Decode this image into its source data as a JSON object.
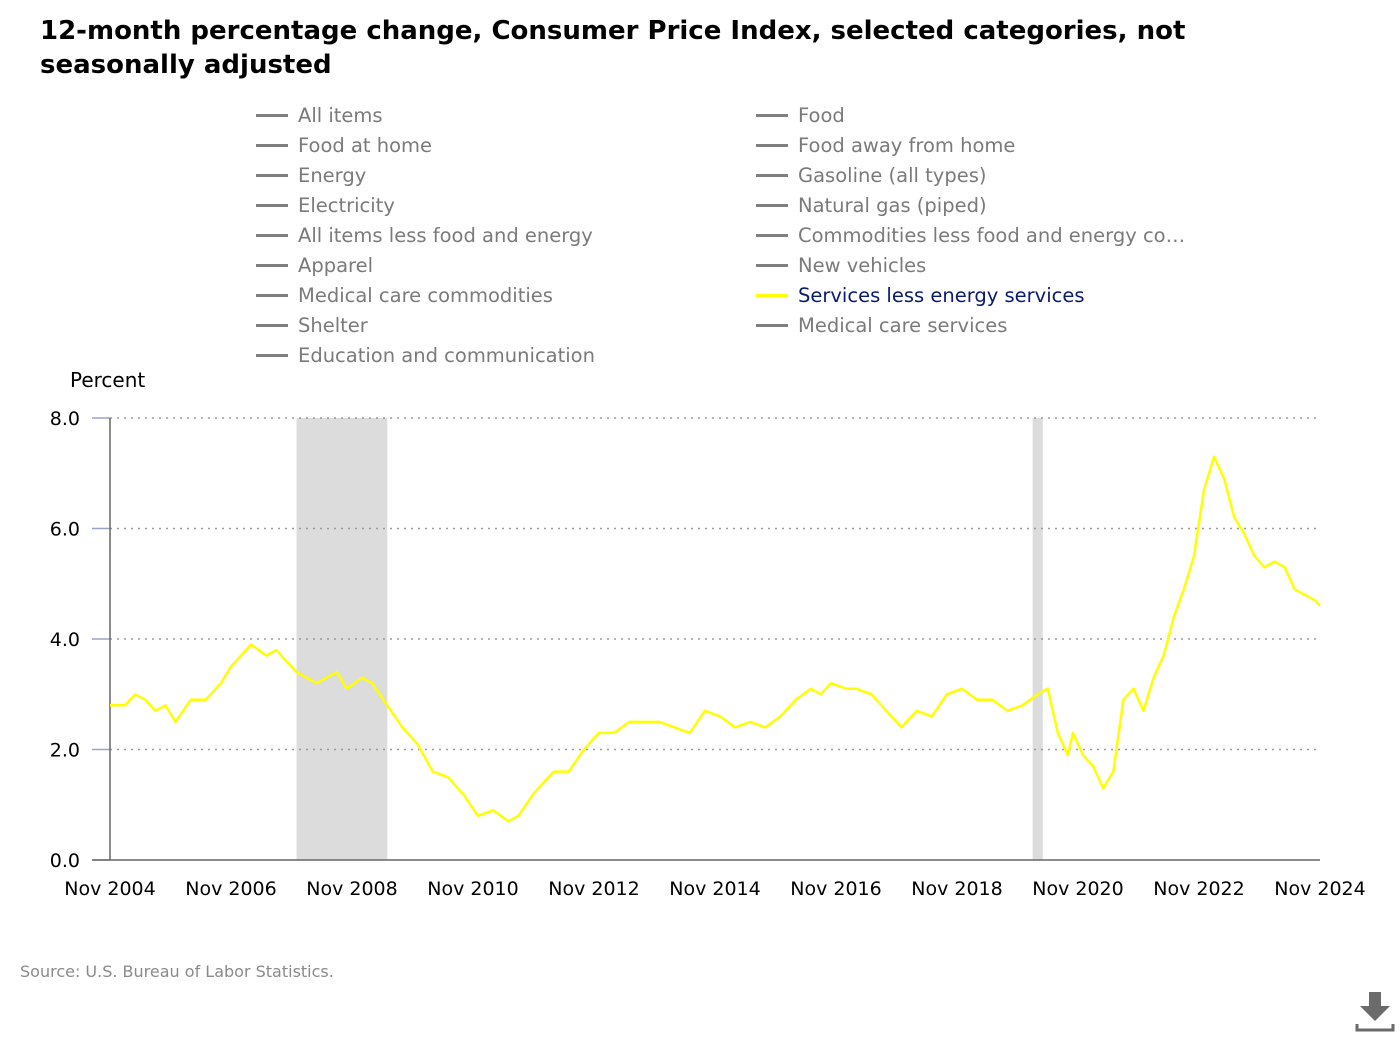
{
  "title": "12-month percentage change, Consumer Price Index, selected categories, not seasonally adjusted",
  "legend": {
    "left": [
      {
        "label": "All items",
        "active": false
      },
      {
        "label": "Food at home",
        "active": false
      },
      {
        "label": "Energy",
        "active": false
      },
      {
        "label": "Electricity",
        "active": false
      },
      {
        "label": "All items less food and energy",
        "active": false
      },
      {
        "label": "Apparel",
        "active": false
      },
      {
        "label": "Medical care commodities",
        "active": false
      },
      {
        "label": "Shelter",
        "active": false
      },
      {
        "label": "Education and communication",
        "active": false
      }
    ],
    "right": [
      {
        "label": "Food",
        "active": false
      },
      {
        "label": "Food away from home",
        "active": false
      },
      {
        "label": "Gasoline (all types)",
        "active": false
      },
      {
        "label": "Natural gas (piped)",
        "active": false
      },
      {
        "label": "Commodities less food and energy com...",
        "active": false
      },
      {
        "label": "New vehicles",
        "active": false
      },
      {
        "label": "Services less energy services",
        "active": true
      },
      {
        "label": "Medical care services",
        "active": false
      }
    ]
  },
  "source": "Source: U.S. Bureau of Labor Statistics.",
  "icons": {
    "download": "download-icon"
  },
  "colors": {
    "active_series": "#ffff00",
    "recession": "#dcdcdc",
    "inactive": "#7f7f7f"
  },
  "chart_data": {
    "type": "line",
    "ylabel": "Percent",
    "ylim": [
      0,
      8
    ],
    "yticks": [
      "0.0",
      "2.0",
      "4.0",
      "6.0",
      "8.0"
    ],
    "xlim": [
      "2004-11",
      "2024-11"
    ],
    "xticks": [
      "Nov 2004",
      "Nov 2006",
      "Nov 2008",
      "Nov 2010",
      "Nov 2012",
      "Nov 2014",
      "Nov 2016",
      "Nov 2018",
      "Nov 2020",
      "Nov 2022",
      "Nov 2024"
    ],
    "grid": true,
    "recessions": [
      [
        "2007-12",
        "2009-06"
      ],
      [
        "2020-02",
        "2020-04"
      ]
    ],
    "series": [
      {
        "name": "Services less energy services",
        "color": "#ffff00",
        "points": [
          [
            "2004-11",
            2.8
          ],
          [
            "2005-02",
            2.8
          ],
          [
            "2005-04",
            3.0
          ],
          [
            "2005-06",
            2.9
          ],
          [
            "2005-08",
            2.7
          ],
          [
            "2005-10",
            2.8
          ],
          [
            "2005-12",
            2.5
          ],
          [
            "2006-03",
            2.9
          ],
          [
            "2006-06",
            2.9
          ],
          [
            "2006-09",
            3.2
          ],
          [
            "2006-11",
            3.5
          ],
          [
            "2007-01",
            3.7
          ],
          [
            "2007-03",
            3.9
          ],
          [
            "2007-06",
            3.7
          ],
          [
            "2007-08",
            3.8
          ],
          [
            "2007-10",
            3.6
          ],
          [
            "2007-12",
            3.4
          ],
          [
            "2008-02",
            3.3
          ],
          [
            "2008-04",
            3.2
          ],
          [
            "2008-06",
            3.3
          ],
          [
            "2008-08",
            3.4
          ],
          [
            "2008-10",
            3.1
          ],
          [
            "2009-01",
            3.3
          ],
          [
            "2009-03",
            3.2
          ],
          [
            "2009-06",
            2.8
          ],
          [
            "2009-09",
            2.4
          ],
          [
            "2009-12",
            2.1
          ],
          [
            "2010-03",
            1.6
          ],
          [
            "2010-06",
            1.5
          ],
          [
            "2010-09",
            1.2
          ],
          [
            "2010-12",
            0.8
          ],
          [
            "2011-03",
            0.9
          ],
          [
            "2011-06",
            0.7
          ],
          [
            "2011-08",
            0.8
          ],
          [
            "2011-11",
            1.2
          ],
          [
            "2012-03",
            1.6
          ],
          [
            "2012-06",
            1.6
          ],
          [
            "2012-09",
            2.0
          ],
          [
            "2012-12",
            2.3
          ],
          [
            "2013-03",
            2.3
          ],
          [
            "2013-06",
            2.5
          ],
          [
            "2013-09",
            2.5
          ],
          [
            "2013-12",
            2.5
          ],
          [
            "2014-03",
            2.4
          ],
          [
            "2014-06",
            2.3
          ],
          [
            "2014-09",
            2.7
          ],
          [
            "2014-12",
            2.6
          ],
          [
            "2015-03",
            2.4
          ],
          [
            "2015-06",
            2.5
          ],
          [
            "2015-09",
            2.4
          ],
          [
            "2015-12",
            2.6
          ],
          [
            "2016-03",
            2.9
          ],
          [
            "2016-06",
            3.1
          ],
          [
            "2016-08",
            3.0
          ],
          [
            "2016-10",
            3.2
          ],
          [
            "2017-01",
            3.1
          ],
          [
            "2017-03",
            3.1
          ],
          [
            "2017-06",
            3.0
          ],
          [
            "2017-09",
            2.7
          ],
          [
            "2017-12",
            2.4
          ],
          [
            "2018-03",
            2.7
          ],
          [
            "2018-06",
            2.6
          ],
          [
            "2018-09",
            3.0
          ],
          [
            "2018-12",
            3.1
          ],
          [
            "2019-03",
            2.9
          ],
          [
            "2019-06",
            2.9
          ],
          [
            "2019-09",
            2.7
          ],
          [
            "2019-12",
            2.8
          ],
          [
            "2020-03",
            3.0
          ],
          [
            "2020-05",
            3.1
          ],
          [
            "2020-07",
            2.3
          ],
          [
            "2020-09",
            1.9
          ],
          [
            "2020-10",
            2.3
          ],
          [
            "2020-12",
            1.9
          ],
          [
            "2021-02",
            1.7
          ],
          [
            "2021-04",
            1.3
          ],
          [
            "2021-06",
            1.6
          ],
          [
            "2021-08",
            2.9
          ],
          [
            "2021-10",
            3.1
          ],
          [
            "2021-12",
            2.7
          ],
          [
            "2022-02",
            3.3
          ],
          [
            "2022-04",
            3.7
          ],
          [
            "2022-06",
            4.4
          ],
          [
            "2022-08",
            4.9
          ],
          [
            "2022-10",
            5.5
          ],
          [
            "2022-12",
            6.7
          ],
          [
            "2023-02",
            7.3
          ],
          [
            "2023-04",
            6.9
          ],
          [
            "2023-06",
            6.2
          ],
          [
            "2023-08",
            5.9
          ],
          [
            "2023-10",
            5.5
          ],
          [
            "2023-12",
            5.3
          ],
          [
            "2024-02",
            5.4
          ],
          [
            "2024-04",
            5.3
          ],
          [
            "2024-06",
            4.9
          ],
          [
            "2024-08",
            4.8
          ],
          [
            "2024-10",
            4.7
          ],
          [
            "2024-11",
            4.6
          ]
        ]
      }
    ]
  }
}
